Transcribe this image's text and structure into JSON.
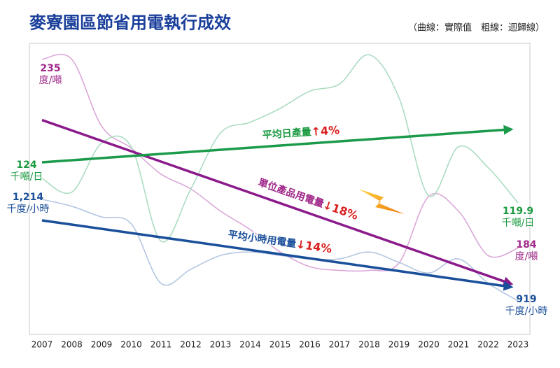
{
  "chart_data": {
    "type": "line",
    "title": "麥寮園區節省用電執行成效",
    "subtitle": "（曲線：實際值　粗線：迴歸線）",
    "categories": [
      "2007",
      "2008",
      "2009",
      "2010",
      "2011",
      "2012",
      "2013",
      "2014",
      "2015",
      "2016",
      "2017",
      "2018",
      "2019",
      "2020",
      "2021",
      "2022",
      "2023"
    ],
    "series": [
      {
        "name": "單位產品用電量",
        "change": "↓18%",
        "unit": "度/噸",
        "start_label": "235",
        "end_label": "184",
        "color": "#dba8d8",
        "trend_color": "#8b1a8b",
        "label_color": "#a0288a",
        "ylim": [
          160.7,
          239.3
        ],
        "values": [
          235,
          235,
          217,
          211,
          204,
          200,
          194,
          189,
          183,
          179,
          178,
          178,
          180,
          198,
          194,
          182,
          184
        ],
        "trend": [
          218.6,
          174.5
        ]
      },
      {
        "name": "平均日產量",
        "change": "↑4%",
        "unit": "千噸/日",
        "start_label": "124",
        "end_label": "119.9",
        "color": "#acdcc2",
        "trend_color": "#1a9a4a",
        "label_color": "#1a9a40",
        "ylim": [
          97.9,
          146.6
        ],
        "values": [
          124,
          121.7,
          129.9,
          129.3,
          113.5,
          122.2,
          131.6,
          133.4,
          135.7,
          138.6,
          139.8,
          144.7,
          137.5,
          121.1,
          129.3,
          125.8,
          119.9
        ],
        "trend": [
          126.7,
          132.2
        ]
      },
      {
        "name": "平均小時用電量",
        "change": "↓14%",
        "unit": "千度/小時",
        "start_label": "1,214",
        "end_label": "919",
        "color": "#b4c6e2",
        "trend_color": "#1a4f9a",
        "label_color": "#1a4f9a",
        "ylim": [
          821.4,
          1667.6
        ],
        "values": [
          1214,
          1194,
          1163,
          1143,
          970,
          1011,
          1051,
          1061,
          1051,
          1041,
          1041,
          1061,
          1031,
          1000,
          1041,
          970,
          919
        ],
        "trend": [
          1153,
          960
        ]
      }
    ]
  }
}
